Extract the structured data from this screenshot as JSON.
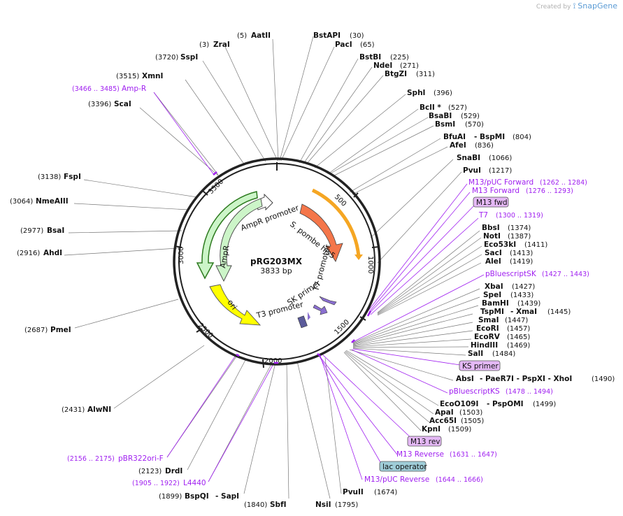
{
  "credit": {
    "prefix": "Created by",
    "brand": "SnapGene"
  },
  "plasmid": {
    "name": "pRG203MX",
    "length_label": "3833 bp"
  },
  "ticks": [
    "500",
    "1000",
    "1500",
    "2000",
    "2500",
    "3000",
    "3500"
  ],
  "features": [
    {
      "label": "AmpR promoter",
      "color": "#ffffff"
    },
    {
      "label": "S. pombe his5",
      "color": "#f4764a"
    },
    {
      "label": "T7 promoter",
      "color": "#8a6fd0"
    },
    {
      "label": "SK primer",
      "color": "#8a6fd0"
    },
    {
      "label": "T3 promoter",
      "color": "#5b5b9a"
    },
    {
      "label": "AmpR",
      "color": "#ccf5c8"
    },
    {
      "label": "ori",
      "color": "#ffff00"
    },
    {
      "label": "orange arc",
      "color": "#f5a623"
    }
  ],
  "left_labels": [
    {
      "pos": "(3)",
      "name": "ZraI"
    },
    {
      "pos": "(5)",
      "name": "AatII"
    },
    {
      "pos": "(3720)",
      "name": "SspI"
    },
    {
      "pos": "(3515)",
      "name": "XmnI"
    },
    {
      "pos": "(3466 .. 3485)",
      "name": "Amp-R"
    },
    {
      "pos": "(3396)",
      "name": "ScaI"
    },
    {
      "pos": "(3138)",
      "name": "FspI"
    },
    {
      "pos": "(3064)",
      "name": "NmeAIII"
    },
    {
      "pos": "(2977)",
      "name": "BsaI"
    },
    {
      "pos": "(2916)",
      "name": "AhdI"
    },
    {
      "pos": "(2687)",
      "name": "PmeI"
    },
    {
      "pos": "(2431)",
      "name": "AlwNI"
    },
    {
      "pos": "(2156 .. 2175)",
      "name": "pBR322ori-F"
    },
    {
      "pos": "(2123)",
      "name": "DrdI"
    },
    {
      "pos": "(1905 .. 1922)",
      "name": "L4440"
    },
    {
      "pos": "(1899)",
      "name": "BspQI",
      "extra": "- SapI"
    },
    {
      "pos": "(1840)",
      "name": "SbfI"
    },
    {
      "pos": "(1795)",
      "name": "NsiI"
    }
  ],
  "right_labels": [
    {
      "name": "BstAPI",
      "pos": "(30)"
    },
    {
      "name": "PacI",
      "pos": "(65)"
    },
    {
      "name": "BstBI",
      "pos": "(225)"
    },
    {
      "name": "NdeI",
      "pos": "(271)"
    },
    {
      "name": "BtgZI",
      "pos": "(311)"
    },
    {
      "name": "SphI",
      "pos": "(396)"
    },
    {
      "name": "BclI *",
      "pos": "(527)"
    },
    {
      "name": "BsaBI",
      "pos": "(529)"
    },
    {
      "name": "BsmI",
      "pos": "(570)"
    },
    {
      "name": "BfuAI",
      "extra": "- BspMI",
      "pos": "(804)"
    },
    {
      "name": "AfeI",
      "pos": "(836)"
    },
    {
      "name": "SnaBI",
      "pos": "(1066)"
    },
    {
      "name": "PvuI",
      "pos": "(1217)"
    },
    {
      "name": "M13/pUC Forward",
      "pos": "(1262 .. 1284)"
    },
    {
      "name": "M13 Forward",
      "pos": "(1276 .. 1293)"
    },
    {
      "name": "M13 fwd"
    },
    {
      "name": "T7",
      "pos": "(1300 .. 1319)"
    },
    {
      "name": "BbsI",
      "pos": "(1374)"
    },
    {
      "name": "NotI",
      "pos": "(1387)"
    },
    {
      "name": "Eco53kI",
      "pos": "(1411)"
    },
    {
      "name": "SacI",
      "pos": "(1413)"
    },
    {
      "name": "AleI",
      "pos": "(1419)"
    },
    {
      "name": "pBluescriptSK",
      "pos": "(1427 .. 1443)"
    },
    {
      "name": "XbaI",
      "pos": "(1427)"
    },
    {
      "name": "SpeI",
      "pos": "(1433)"
    },
    {
      "name": "BamHI",
      "pos": "(1439)"
    },
    {
      "name": "TspMI",
      "extra": "- XmaI",
      "pos": "(1445)"
    },
    {
      "name": "SmaI",
      "pos": "(1447)"
    },
    {
      "name": "EcoRI",
      "pos": "(1457)"
    },
    {
      "name": "EcoRV",
      "pos": "(1465)"
    },
    {
      "name": "HindIII",
      "pos": "(1469)"
    },
    {
      "name": "SalI",
      "pos": "(1484)"
    },
    {
      "name": "KS primer"
    },
    {
      "name": "AbsI",
      "extra": "- PaeR7I  - PspXI  - XhoI",
      "pos": "(1490)"
    },
    {
      "name": "pBluescriptKS",
      "pos": "(1478 .. 1494)"
    },
    {
      "name": "EcoO109I",
      "extra": "- PspOMI",
      "pos": "(1499)"
    },
    {
      "name": "ApaI",
      "pos": "(1503)"
    },
    {
      "name": "Acc65I",
      "pos": "(1505)"
    },
    {
      "name": "KpnI",
      "pos": "(1509)"
    },
    {
      "name": "M13 rev"
    },
    {
      "name": "M13 Reverse",
      "pos": "(1631 .. 1647)"
    },
    {
      "name": "lac operator"
    },
    {
      "name": "M13/pUC Reverse",
      "pos": "(1644 .. 1666)"
    },
    {
      "name": "PvuII",
      "pos": "(1674)"
    }
  ]
}
